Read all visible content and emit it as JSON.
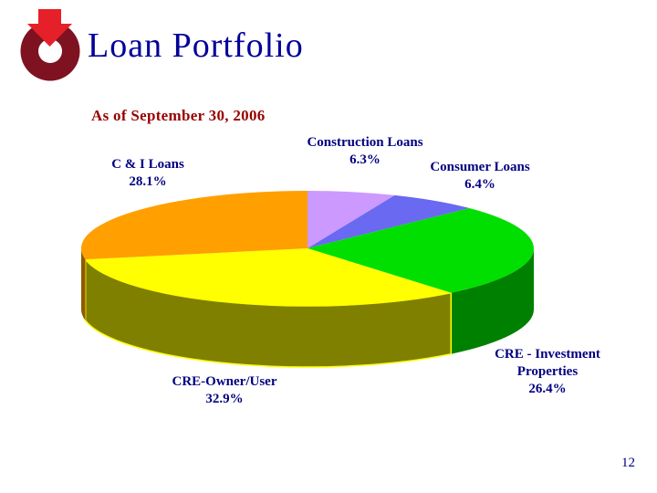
{
  "slide": {
    "title": "Loan Portfolio",
    "subtitle": "As of September 30, 2006",
    "page_number": "12"
  },
  "colors": {
    "title-color": "#000099",
    "subtitle-color": "#990000",
    "label-color": "#000080",
    "pagenum-color": "#000080",
    "background": "#FFFFFF"
  },
  "logo": {
    "name": "ring-arrow-logo",
    "ring_color": "#7E1220",
    "arrow_color": "#E62028"
  },
  "chart_data": {
    "type": "pie",
    "title": "Loan Portfolio",
    "subtitle": "As of September 30, 2006",
    "style": "3d-pie",
    "start_angle_deg": 0,
    "direction": "clockwise",
    "legend_position": "none",
    "labels": [
      "Construction Loans",
      "Consumer Loans",
      "CRE - Investment Properties",
      "CRE-Owner/User",
      "C & I Loans"
    ],
    "values": [
      6.3,
      6.4,
      26.4,
      32.9,
      28.1
    ],
    "colors": [
      "#CC99FF",
      "#6969F2",
      "#00DF00",
      "#FFFF00",
      "#FF9F00"
    ],
    "side_colors": [
      "#9977CC",
      "#4A4ABB",
      "#008000",
      "#808000",
      "#8F5B00"
    ],
    "labels_display": [
      {
        "line1": "Construction Loans",
        "pct": "6.3%"
      },
      {
        "line1": "Consumer Loans",
        "pct": "6.4%"
      },
      {
        "line1": "CRE - Investment",
        "line2": "Properties",
        "pct": "26.4%"
      },
      {
        "line1": "CRE-Owner/User",
        "pct": "32.9%"
      },
      {
        "line1": "C & I Loans",
        "pct": "28.1%"
      }
    ]
  }
}
